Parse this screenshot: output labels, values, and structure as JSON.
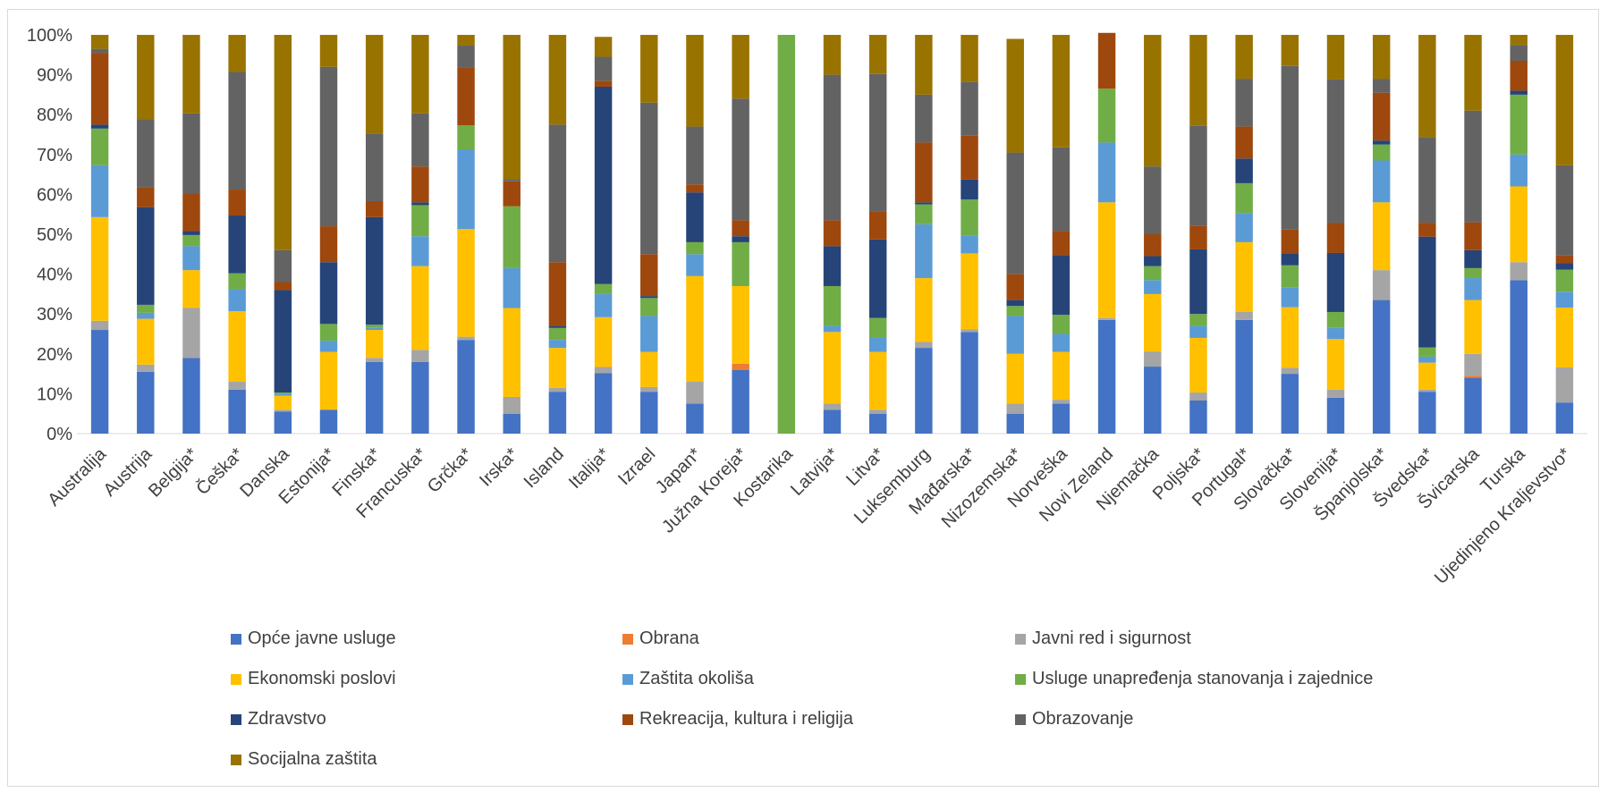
{
  "chart_data": {
    "type": "bar",
    "stacked": "percent",
    "ylim": [
      0,
      100
    ],
    "yticks": [
      "0%",
      "10%",
      "20%",
      "30%",
      "40%",
      "50%",
      "60%",
      "70%",
      "80%",
      "90%",
      "100%"
    ],
    "grid": false,
    "legend_position": "bottom",
    "categories": [
      "Australija",
      "Austrija",
      "Belgija*",
      "Češka*",
      "Danska",
      "Estonija*",
      "Finska*",
      "Francuska*",
      "Grčka*",
      "Irska*",
      "Island",
      "Italija*",
      "Izrael",
      "Japan*",
      "Južna Koreja*",
      "Kostarika",
      "Latvija*",
      "Litva*",
      "Luksemburg",
      "Mađarska*",
      "Nizozemska*",
      "Norveška",
      "Novi Zeland",
      "Njemačka",
      "Poljska*",
      "Portugal*",
      "Slovačka*",
      "Slovenija*",
      "Španjolska*",
      "Švedska*",
      "Švicarska",
      "Turska",
      "Ujedinjeno Kraljevstvo*"
    ],
    "series": [
      {
        "name": "Opće javne usluge",
        "color": "#4472C4",
        "values": [
          26,
          15.5,
          19,
          11,
          5.5,
          6,
          18,
          18,
          23.5,
          5,
          10.5,
          15.2,
          10.5,
          7.5,
          16,
          0,
          6,
          5,
          21.5,
          25.5,
          5,
          7.5,
          28.5,
          16.8,
          8.3,
          28.5,
          15,
          9,
          33.5,
          10.5,
          14,
          38.5,
          7.8
        ]
      },
      {
        "name": "Obrana",
        "color": "#ED7D31",
        "values": [
          0,
          0,
          0,
          0,
          0,
          0,
          0,
          0,
          0,
          0,
          0,
          0,
          0,
          0,
          1.5,
          0,
          0,
          0,
          0,
          0,
          0,
          0,
          0,
          0,
          0,
          0,
          0,
          0,
          0,
          0,
          0.5,
          0,
          0
        ]
      },
      {
        "name": "Javni red i sigurnost",
        "color": "#A5A5A5",
        "values": [
          2.3,
          1.8,
          12.5,
          2,
          0.5,
          0,
          1,
          3,
          0.8,
          4.2,
          1,
          1.5,
          1.2,
          5.5,
          0,
          0,
          1.5,
          1,
          1.5,
          0.7,
          2.5,
          1,
          0.5,
          3.8,
          2,
          2,
          1.5,
          2,
          7.5,
          0.5,
          5.5,
          4.5,
          8.8
        ]
      },
      {
        "name": "Ekonomski poslovi",
        "color": "#FFC000",
        "values": [
          26,
          11.5,
          9.5,
          17.7,
          3.5,
          14.5,
          7,
          21,
          27,
          22.3,
          10,
          12.5,
          8.8,
          26.5,
          19.5,
          0,
          18,
          14.5,
          16,
          19,
          12.5,
          12,
          29,
          14.4,
          13.7,
          17.5,
          15.2,
          12.7,
          17,
          6.8,
          13.5,
          19,
          15
        ]
      },
      {
        "name": "Zaštita okoliša",
        "color": "#5B9BD5",
        "values": [
          13,
          1.5,
          6,
          5.5,
          0.5,
          2.8,
          0.5,
          7.5,
          20,
          10,
          2,
          5.8,
          9,
          5.5,
          0,
          0,
          1.5,
          3.5,
          13.5,
          4.5,
          9.5,
          4.5,
          15,
          3.5,
          3,
          7.3,
          5,
          2.8,
          10.5,
          1.5,
          5.5,
          8,
          4
        ]
      },
      {
        "name": "Usluge unapređenja stanovanja i zajednice",
        "color": "#70AD47",
        "values": [
          9.2,
          2,
          2.8,
          4,
          0.3,
          4.2,
          0.8,
          7.8,
          6,
          15.5,
          3,
          2.5,
          4.5,
          3,
          11,
          100,
          10,
          5,
          5,
          9,
          2.5,
          4.8,
          13.5,
          3.5,
          3,
          7.5,
          5.5,
          4,
          4,
          2.3,
          2.5,
          15,
          5.5
        ]
      },
      {
        "name": "Zdravstvo",
        "color": "#264478",
        "values": [
          1,
          24.5,
          1,
          14.5,
          25.7,
          15.5,
          27,
          0.7,
          0,
          0,
          0.5,
          49.5,
          0.5,
          12.5,
          1.5,
          0,
          10,
          19.7,
          0.5,
          5,
          1.5,
          15,
          0,
          2.5,
          16.2,
          6.2,
          3,
          14.8,
          1,
          27.8,
          4.5,
          1,
          1.7
        ]
      },
      {
        "name": "Rekreacija, kultura i religija",
        "color": "#9E480E",
        "values": [
          18,
          5,
          9.5,
          6.5,
          2,
          9,
          4,
          9,
          14.5,
          6.3,
          16,
          1.5,
          10.5,
          2,
          4,
          0,
          6.5,
          7,
          15,
          11,
          6.5,
          6,
          14,
          5.5,
          6,
          8,
          6,
          7.5,
          12,
          3.5,
          7,
          7.5,
          2
        ]
      },
      {
        "name": "Obrazovanje",
        "color": "#636363",
        "values": [
          1,
          17,
          20,
          29.5,
          8,
          40,
          17,
          13.3,
          5.5,
          0.5,
          34.5,
          6,
          38,
          14.5,
          30.5,
          0,
          36.5,
          34.5,
          12,
          13.5,
          30.5,
          21,
          0,
          17,
          25,
          12,
          41,
          36,
          3.5,
          21.5,
          28,
          4,
          22.5
        ]
      },
      {
        "name": "Socijalna zaštita",
        "color": "#997300",
        "values": [
          3.5,
          21.2,
          19.7,
          9.3,
          54,
          8,
          24.7,
          19.7,
          2.7,
          36.2,
          22.5,
          5,
          17,
          23,
          16,
          0,
          10,
          9.8,
          15,
          11.8,
          28.5,
          28.2,
          0,
          33,
          22.8,
          11,
          7.8,
          11.2,
          11,
          25.6,
          19,
          2.5,
          32.7
        ]
      }
    ]
  }
}
